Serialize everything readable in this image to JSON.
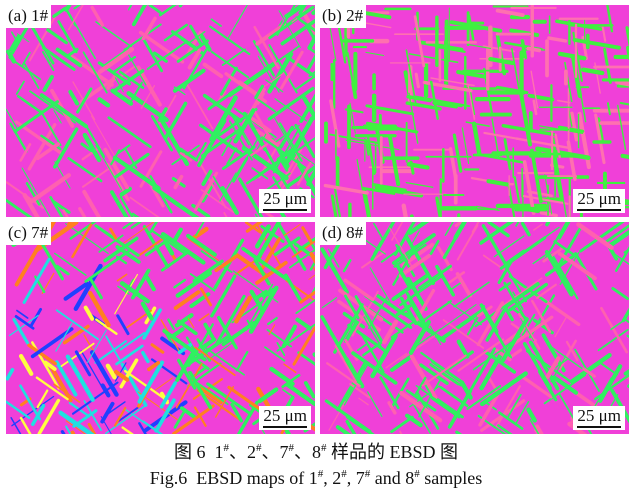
{
  "figure": {
    "panels": [
      {
        "label": "(a) 1#",
        "scale_bar": "25 μm",
        "dominant_colors": [
          "#f040d8",
          "#30f060",
          "#ff60b0"
        ]
      },
      {
        "label": "(b) 2#",
        "scale_bar": "25 μm",
        "dominant_colors": [
          "#f050d0",
          "#40f040",
          "#ff70b0"
        ]
      },
      {
        "label": "(c) 7#",
        "scale_bar": "25 μm",
        "dominant_colors": [
          "#f040d8",
          "#30f060",
          "#ff8020",
          "#2040ff",
          "#20e0e0",
          "#ffff40"
        ]
      },
      {
        "label": "(d) 8#",
        "scale_bar": "25 μm",
        "dominant_colors": [
          "#f040d8",
          "#30f060",
          "#ff60b0"
        ]
      }
    ],
    "caption_cn": {
      "prefix": "图 6  ",
      "s1": "1",
      "s2": "2",
      "s3": "7",
      "s4": "8",
      "sup": "#",
      "sep": "、",
      "suffix": " 样品的 EBSD 图"
    },
    "caption_en": {
      "prefix": "Fig.6  EBSD maps of ",
      "s1": "1",
      "s2": "2",
      "s3": "7",
      "s4": "8",
      "sup": "#",
      "c1": ", ",
      "c2": ", ",
      "c3": " and ",
      "suffix": " samples"
    }
  }
}
